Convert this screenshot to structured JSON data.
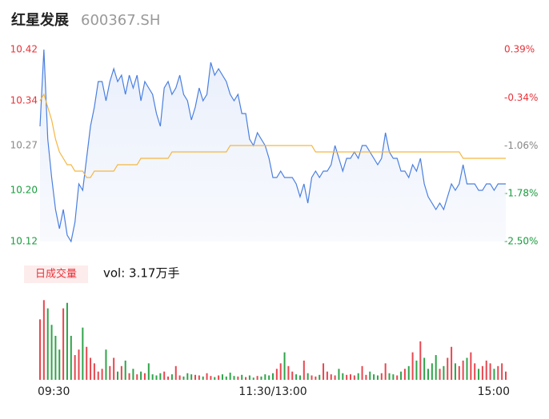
{
  "chart_data": {
    "type": "intraday",
    "title": "红星发展",
    "subtitle": "600367.SH",
    "x": [
      0,
      2,
      4,
      6,
      8,
      10,
      12,
      14,
      16,
      18,
      20,
      22,
      24,
      26,
      28,
      30,
      32,
      34,
      36,
      38,
      40,
      42,
      44,
      46,
      48,
      50,
      52,
      54,
      56,
      58,
      60,
      62,
      64,
      66,
      68,
      70,
      72,
      74,
      76,
      78,
      80,
      82,
      84,
      86,
      88,
      90,
      92,
      94,
      96,
      98,
      100,
      102,
      104,
      106,
      108,
      110,
      112,
      114,
      116,
      118,
      120,
      122,
      124,
      126,
      128,
      130,
      132,
      134,
      136,
      138,
      140,
      142,
      144,
      146,
      148,
      150,
      152,
      154,
      156,
      158,
      160,
      162,
      164,
      166,
      168,
      170,
      172,
      174,
      176,
      178,
      180,
      182,
      184,
      186,
      188,
      190,
      192,
      194,
      196,
      198,
      200,
      202,
      204,
      206,
      208,
      210,
      212,
      214,
      216,
      218,
      220,
      222,
      224,
      226,
      228,
      230,
      232,
      234,
      236,
      238,
      240
    ],
    "xlim": [
      0,
      240
    ],
    "xticks": [
      {
        "value": 0,
        "label": "09:30"
      },
      {
        "value": 120,
        "label": "11:30/13:00"
      },
      {
        "value": 240,
        "label": "15:00"
      }
    ],
    "ylim": [
      10.12,
      10.42
    ],
    "yticks": [
      10.42,
      10.34,
      10.27,
      10.2,
      10.12
    ],
    "ytick_labels": [
      "10.42",
      "10.34",
      "10.27",
      "10.20",
      "10.12"
    ],
    "ytick_colors": [
      "#e8333a",
      "#e8333a",
      "#888888",
      "#1a9c3e",
      "#1a9c3e"
    ],
    "y2lim": [
      -2.5,
      0.39
    ],
    "y2ticks": [
      {
        "value": 0.39,
        "label": "0.39%"
      },
      {
        "value": -0.34,
        "label": "-0.34%"
      },
      {
        "value": -1.06,
        "label": "-1.06%"
      },
      {
        "value": -1.78,
        "label": "-1.78%"
      },
      {
        "value": -2.5,
        "label": "-2.50%"
      }
    ],
    "series": [
      {
        "color": "#4a7fe0",
        "values": [
          10.3,
          10.42,
          10.28,
          10.22,
          10.17,
          10.14,
          10.17,
          10.13,
          10.12,
          10.15,
          10.21,
          10.2,
          10.25,
          10.3,
          10.33,
          10.37,
          10.37,
          10.34,
          10.37,
          10.39,
          10.37,
          10.38,
          10.35,
          10.38,
          10.36,
          10.38,
          10.34,
          10.37,
          10.36,
          10.35,
          10.32,
          10.3,
          10.36,
          10.37,
          10.35,
          10.36,
          10.38,
          10.35,
          10.34,
          10.31,
          10.33,
          10.36,
          10.34,
          10.35,
          10.4,
          10.38,
          10.39,
          10.38,
          10.37,
          10.35,
          10.34,
          10.35,
          10.32,
          10.32,
          10.28,
          10.27,
          10.29,
          10.28,
          10.27,
          10.25,
          10.22,
          10.22,
          10.23,
          10.22,
          10.22,
          10.22,
          10.21,
          10.19,
          10.21,
          10.18,
          10.22,
          10.23,
          10.22,
          10.23,
          10.23,
          10.24,
          10.27,
          10.25,
          10.23,
          10.25,
          10.25,
          10.26,
          10.25,
          10.27,
          10.27,
          10.26,
          10.25,
          10.24,
          10.25,
          10.29,
          10.26,
          10.25,
          10.25,
          10.23,
          10.23,
          10.22,
          10.24,
          10.23,
          10.25,
          10.21,
          10.19,
          10.18,
          10.17,
          10.18,
          10.17,
          10.19,
          10.21,
          10.2,
          10.21,
          10.24,
          10.21,
          10.21,
          10.21,
          10.2,
          10.2,
          10.21,
          10.21,
          10.2,
          10.21,
          10.21,
          10.21
        ]
      },
      {
        "color": "#f5b640",
        "values": [
          10.34,
          10.35,
          10.33,
          10.31,
          10.28,
          10.26,
          10.25,
          10.24,
          10.24,
          10.23,
          10.23,
          10.23,
          10.22,
          10.22,
          10.23,
          10.23,
          10.23,
          10.23,
          10.23,
          10.23,
          10.24,
          10.24,
          10.24,
          10.24,
          10.24,
          10.24,
          10.25,
          10.25,
          10.25,
          10.25,
          10.25,
          10.25,
          10.25,
          10.25,
          10.26,
          10.26,
          10.26,
          10.26,
          10.26,
          10.26,
          10.26,
          10.26,
          10.26,
          10.26,
          10.26,
          10.26,
          10.26,
          10.26,
          10.26,
          10.27,
          10.27,
          10.27,
          10.27,
          10.27,
          10.27,
          10.27,
          10.27,
          10.27,
          10.27,
          10.27,
          10.27,
          10.27,
          10.27,
          10.27,
          10.27,
          10.27,
          10.27,
          10.27,
          10.27,
          10.27,
          10.27,
          10.26,
          10.26,
          10.26,
          10.26,
          10.26,
          10.26,
          10.26,
          10.26,
          10.26,
          10.26,
          10.26,
          10.26,
          10.26,
          10.26,
          10.26,
          10.26,
          10.26,
          10.26,
          10.26,
          10.26,
          10.26,
          10.26,
          10.26,
          10.26,
          10.26,
          10.26,
          10.26,
          10.26,
          10.26,
          10.26,
          10.26,
          10.26,
          10.26,
          10.26,
          10.26,
          10.26,
          10.26,
          10.26,
          10.25,
          10.25,
          10.25,
          10.25,
          10.25,
          10.25,
          10.25,
          10.25,
          10.25,
          10.25,
          10.25,
          10.25
        ]
      }
    ],
    "volume_tab": "日成交量",
    "volume_label": "vol: 3.17万手",
    "volume_lim": [
      0,
      1600
    ],
    "up_color": "#e8474f",
    "down_color": "#2fa44a",
    "volume": [
      1100,
      1450,
      1300,
      1000,
      800,
      550,
      1300,
      1400,
      800,
      450,
      550,
      950,
      600,
      400,
      300,
      150,
      200,
      550,
      250,
      400,
      150,
      250,
      350,
      120,
      200,
      100,
      150,
      120,
      300,
      100,
      80,
      120,
      150,
      60,
      100,
      250,
      80,
      60,
      120,
      100,
      90,
      80,
      60,
      120,
      70,
      50,
      80,
      100,
      60,
      130,
      70,
      60,
      90,
      50,
      80,
      40,
      70,
      60,
      100,
      80,
      120,
      200,
      300,
      500,
      250,
      150,
      100,
      80,
      350,
      120,
      80,
      60,
      90,
      300,
      150,
      100,
      80,
      200,
      120,
      90,
      100,
      80,
      120,
      250,
      90,
      150,
      100,
      80,
      120,
      300,
      120,
      100,
      80,
      150,
      200,
      250,
      500,
      350,
      700,
      400,
      200,
      300,
      450,
      200,
      250,
      400,
      600,
      300,
      250,
      350,
      400,
      500,
      300,
      200,
      250,
      350,
      300,
      200,
      250,
      300,
      150
    ]
  }
}
